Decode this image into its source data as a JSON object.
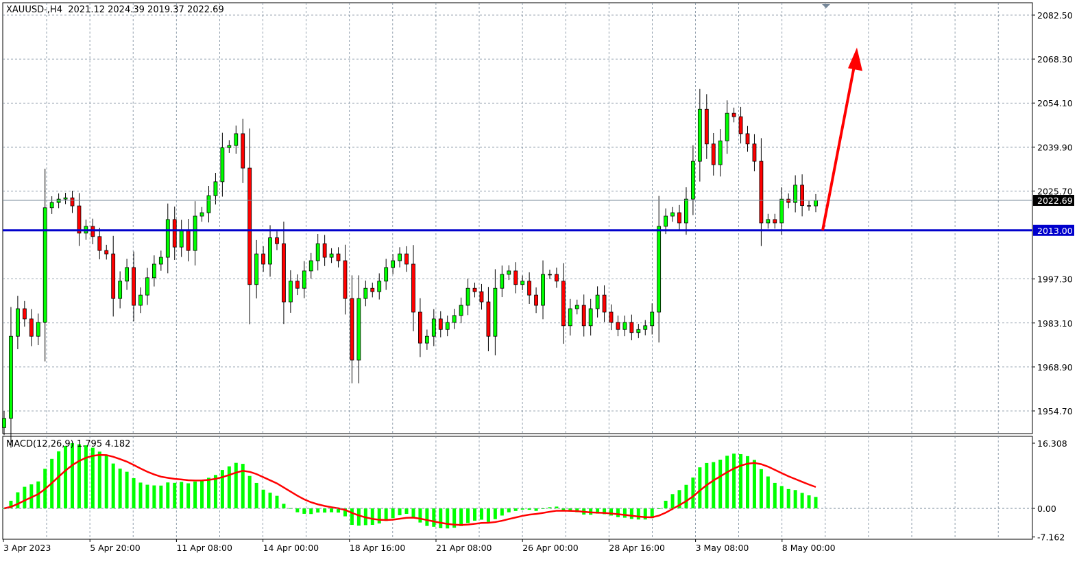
{
  "header": {
    "symbol": "XAUUSD-,H4",
    "open": "2021.12",
    "high": "2024.39",
    "low": "2019.37",
    "close": "2022.69"
  },
  "macd": {
    "label": "MACD(12,26,9)",
    "main": "1.795",
    "signal": "4.182",
    "ticks": [
      "16.308",
      "0.00",
      "-7.162"
    ],
    "range": [
      -7.162,
      16.308
    ]
  },
  "colors": {
    "bull": "#00ff00",
    "bear": "#ff0000",
    "level": "#0000cc",
    "arrow": "#ff0000",
    "grid": "#778899"
  },
  "chart_data": {
    "type": "candlestick",
    "symbol": "XAUUSD",
    "timeframe": "H4",
    "ylim": [
      1950,
      2085
    ],
    "y_ticks": [
      "2082.50",
      "2068.30",
      "2054.10",
      "2039.90",
      "2025.70",
      "1997.30",
      "1983.10",
      "1968.90",
      "1954.70"
    ],
    "x_ticks": [
      "3 Apr 2023",
      "5 Apr 20:00",
      "11 Apr 08:00",
      "14 Apr 00:00",
      "18 Apr 16:00",
      "21 Apr 08:00",
      "26 Apr 00:00",
      "28 Apr 16:00",
      "3 May 08:00",
      "8 May 00:00"
    ],
    "current_price": "2022.69",
    "horizontal_level": "2013.00",
    "arrow": {
      "from": 2013.0,
      "to": 2072,
      "direction": "up"
    },
    "closes": [
      1952.3,
      1978.8,
      1987.7,
      1984.4,
      1978.8,
      1983.3,
      2020.3,
      2022.0,
      2023.1,
      2023.5,
      2020.9,
      2012.1,
      2014.3,
      2011.0,
      2006.5,
      2005.4,
      1991.0,
      1996.6,
      2001.0,
      1988.8,
      1992.1,
      1997.7,
      2002.1,
      2004.3,
      2016.5,
      2007.6,
      2013.2,
      2006.5,
      2017.6,
      2018.7,
      2024.2,
      2028.7,
      2039.7,
      2040.4,
      2044.2,
      2033.1,
      1995.5,
      2005.4,
      2002.1,
      2010.6,
      2008.7,
      1989.9,
      1996.6,
      1994.3,
      1999.9,
      2003.2,
      2008.7,
      2004.3,
      2005.4,
      2003.2,
      1991.0,
      1971.1,
      1991.0,
      1994.3,
      1993.2,
      1996.6,
      2001.0,
      2003.2,
      2005.4,
      2002.1,
      1986.6,
      1976.6,
      1978.8,
      1984.4,
      1981.0,
      1983.3,
      1985.5,
      1988.8,
      1994.3,
      1993.2,
      1989.9,
      1978.8,
      1994.3,
      1998.8,
      1999.9,
      1995.5,
      1996.6,
      1992.1,
      1988.8,
      1998.8,
      1998.8,
      1996.6,
      1982.2,
      1987.7,
      1988.8,
      1982.2,
      1987.7,
      1992.1,
      1986.6,
      1983.3,
      1981.0,
      1983.3,
      1980.0,
      1981.0,
      1982.2,
      1986.6,
      2014.3,
      2017.6,
      2018.7,
      2015.4,
      2023.1,
      2035.3,
      2052.1,
      2040.9,
      2034.2,
      2041.9,
      2050.8,
      2049.7,
      2044.2,
      2040.9,
      2035.3,
      2015.4,
      2016.5,
      2015.4,
      2023.1,
      2022.0,
      2027.6,
      2021.0,
      2020.9,
      2022.69
    ]
  }
}
